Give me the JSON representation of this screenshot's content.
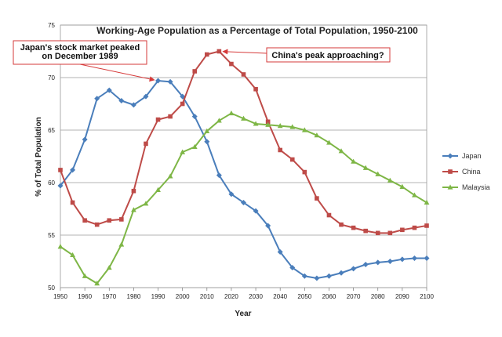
{
  "chart_data": {
    "type": "line",
    "title": "Working-Age Population as a Percentage of Total Population, 1950-2100",
    "xlabel": "Year",
    "ylabel": "% of Total Population",
    "x": [
      1950,
      1955,
      1960,
      1965,
      1970,
      1975,
      1980,
      1985,
      1990,
      1995,
      2000,
      2005,
      2010,
      2015,
      2020,
      2025,
      2030,
      2035,
      2040,
      2045,
      2050,
      2055,
      2060,
      2065,
      2070,
      2075,
      2080,
      2085,
      2090,
      2095,
      2100
    ],
    "x_ticks": [
      1950,
      1960,
      1970,
      1980,
      1990,
      2000,
      2010,
      2020,
      2030,
      2040,
      2050,
      2060,
      2070,
      2080,
      2090,
      2100
    ],
    "y_ticks": [
      50,
      55,
      60,
      65,
      70,
      75
    ],
    "xlim": [
      1950,
      2100
    ],
    "ylim": [
      50,
      75
    ],
    "grid": true,
    "legend_position": "right",
    "series": [
      {
        "name": "Japan",
        "color": "#4a7ebb",
        "marker": "diamond",
        "values": [
          59.7,
          61.2,
          64.1,
          68.0,
          68.8,
          67.8,
          67.4,
          68.2,
          69.7,
          69.6,
          68.2,
          66.3,
          63.9,
          60.7,
          58.9,
          58.1,
          57.3,
          55.9,
          53.4,
          51.9,
          51.1,
          50.9,
          51.1,
          51.4,
          51.8,
          52.2,
          52.4,
          52.5,
          52.7,
          52.8,
          52.8
        ]
      },
      {
        "name": "China",
        "color": "#be4b48",
        "marker": "square",
        "values": [
          61.2,
          58.1,
          56.4,
          56.0,
          56.4,
          56.5,
          59.2,
          63.7,
          66.0,
          66.3,
          67.5,
          70.6,
          72.2,
          72.5,
          71.3,
          70.3,
          68.9,
          65.8,
          63.1,
          62.2,
          61.0,
          58.5,
          56.9,
          56.0,
          55.7,
          55.4,
          55.2,
          55.2,
          55.5,
          55.7,
          55.9
        ]
      },
      {
        "name": "Malaysia",
        "color": "#7eb646",
        "marker": "triangle",
        "values": [
          53.9,
          53.1,
          51.1,
          50.4,
          51.9,
          54.1,
          57.4,
          58.0,
          59.3,
          60.6,
          62.9,
          63.4,
          64.9,
          65.9,
          66.6,
          66.1,
          65.6,
          65.5,
          65.4,
          65.3,
          65.0,
          64.5,
          63.8,
          63.0,
          62.0,
          61.4,
          60.8,
          60.2,
          59.6,
          58.8,
          58.1
        ]
      }
    ],
    "annotations": [
      {
        "id": "japan",
        "lines": [
          "Japan's stock market peaked",
          "on December 1989"
        ],
        "points_to": {
          "x": 1990,
          "y": 69.7
        }
      },
      {
        "id": "china",
        "lines": [
          "China's peak approaching?"
        ],
        "points_to": {
          "x": 2015,
          "y": 72.5
        }
      }
    ]
  }
}
